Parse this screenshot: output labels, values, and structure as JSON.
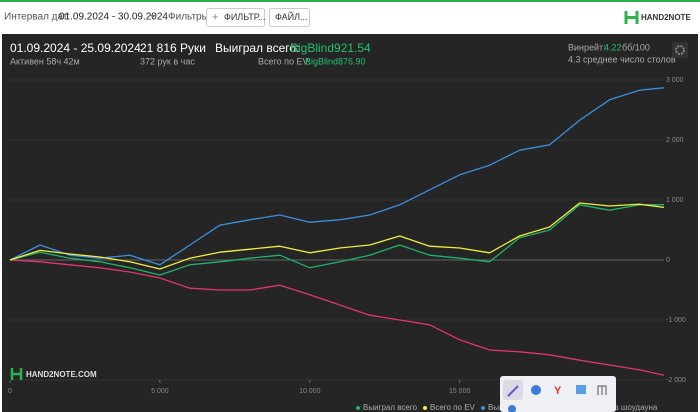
{
  "toolbar": {
    "interval_label": "Интервал дат:",
    "interval_value": "01.09.2024 - 30.09.2024",
    "filters_label": "Фильтры:",
    "filter_button": "ФИЛЬТР...",
    "file_button": "ФАЙЛ...",
    "logo": "HAND2NOTE"
  },
  "stats": {
    "period": "01.09.2024 - 25.09.2024",
    "active": "Активен 58ч 42м",
    "hands": "21 816 Руки",
    "hands_per_hour": "372 рук в час",
    "won_label": "Выиграл всего:",
    "won_value": "BigBlind921.54",
    "ev_label": "Всего по EV:",
    "ev_value": "BigBlind876.90",
    "winrate_label": "Винрейт:",
    "winrate_value": "4.22",
    "winrate_unit": "бб/100",
    "tables": "4.3 среднее число столов"
  },
  "chart_data": {
    "type": "line",
    "watermark": "HAND2NOTE.COM",
    "x": [
      0,
      1000,
      2000,
      3000,
      4000,
      5000,
      6000,
      7000,
      8000,
      9000,
      10000,
      11000,
      12000,
      13000,
      14000,
      15000,
      16000,
      17000,
      18000,
      19000,
      20000,
      21000,
      21816
    ],
    "series": [
      {
        "name": "Выиграл всего",
        "color": "#1db36b",
        "values": [
          0,
          130,
          30,
          -30,
          -130,
          -250,
          -80,
          -30,
          30,
          80,
          -130,
          -30,
          80,
          250,
          80,
          30,
          -30,
          370,
          500,
          920,
          830,
          920,
          921
        ]
      },
      {
        "name": "Всего по EV",
        "color": "#f2ee3a",
        "values": [
          0,
          160,
          100,
          50,
          -30,
          -150,
          30,
          130,
          180,
          230,
          120,
          200,
          250,
          400,
          230,
          200,
          120,
          400,
          550,
          950,
          900,
          930,
          877
        ]
      },
      {
        "name": "Выиграл на шоудауне",
        "color": "#3a8fe0",
        "values": [
          0,
          250,
          80,
          30,
          80,
          -80,
          250,
          580,
          670,
          750,
          630,
          670,
          750,
          920,
          1170,
          1420,
          1580,
          1830,
          1920,
          2330,
          2670,
          2830,
          2870
        ]
      },
      {
        "name": "Выиграл без шоудауна",
        "color": "#e0356f",
        "values": [
          0,
          -30,
          -80,
          -130,
          -200,
          -300,
          -470,
          -500,
          -500,
          -420,
          -580,
          -750,
          -920,
          -1000,
          -1080,
          -1330,
          -1500,
          -1530,
          -1580,
          -1670,
          -1750,
          -1830,
          -1920
        ]
      }
    ],
    "xlim": [
      0,
      21816
    ],
    "ylim": [
      -2000,
      3000
    ],
    "xticks": [
      0,
      {
        "value": 5000,
        "label": "5 000"
      },
      {
        "value": 10000,
        "label": "10 000"
      },
      {
        "value": 15000,
        "label": "15 000"
      }
    ],
    "yticks": [
      {
        "value": -2000,
        "label": "-2 000"
      },
      {
        "value": -1000,
        "label": "-1 000"
      },
      0,
      {
        "value": 1000,
        "label": "1 000"
      },
      {
        "value": 2000,
        "label": "2 000"
      },
      {
        "value": 3000,
        "label": "3 000"
      }
    ],
    "grid": true
  }
}
